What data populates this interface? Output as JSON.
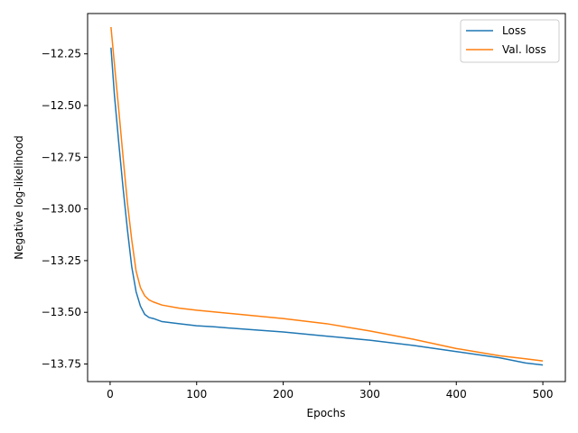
{
  "chart_data": {
    "type": "line",
    "title": "",
    "xlabel": "Epochs",
    "ylabel": "Negative log-likelihood",
    "xlim": [
      -26,
      526
    ],
    "ylim": [
      -13.835,
      -12.055
    ],
    "xticks": [
      0,
      100,
      200,
      300,
      400,
      500
    ],
    "xtick_labels": [
      "0",
      "100",
      "200",
      "300",
      "400",
      "500"
    ],
    "yticks": [
      -12.25,
      -12.5,
      -12.75,
      -13.0,
      -13.25,
      -13.5,
      -13.75
    ],
    "ytick_labels": [
      "−12.25",
      "−12.50",
      "−12.75",
      "−13.00",
      "−13.25",
      "−13.50",
      "−13.75"
    ],
    "grid": false,
    "legend_position": "top-right",
    "series": [
      {
        "name": "Loss",
        "color": "#1f77b4",
        "x": [
          1,
          5,
          10,
          15,
          20,
          25,
          30,
          35,
          40,
          45,
          50,
          60,
          80,
          100,
          120,
          150,
          200,
          250,
          300,
          350,
          400,
          450,
          480,
          500
        ],
        "y": [
          -12.22,
          -12.45,
          -12.68,
          -12.9,
          -13.1,
          -13.28,
          -13.4,
          -13.47,
          -13.51,
          -13.525,
          -13.53,
          -13.545,
          -13.555,
          -13.565,
          -13.57,
          -13.58,
          -13.595,
          -13.615,
          -13.635,
          -13.66,
          -13.69,
          -13.72,
          -13.745,
          -13.755
        ]
      },
      {
        "name": "Val. loss",
        "color": "#ff7f0e",
        "x": [
          1,
          5,
          10,
          15,
          20,
          25,
          30,
          35,
          40,
          45,
          50,
          60,
          80,
          100,
          150,
          200,
          250,
          300,
          350,
          400,
          450,
          480,
          500
        ],
        "y": [
          -12.12,
          -12.3,
          -12.52,
          -12.75,
          -12.97,
          -13.15,
          -13.3,
          -13.38,
          -13.42,
          -13.44,
          -13.45,
          -13.465,
          -13.48,
          -13.49,
          -13.51,
          -13.53,
          -13.555,
          -13.59,
          -13.63,
          -13.675,
          -13.71,
          -13.725,
          -13.735
        ]
      }
    ]
  }
}
